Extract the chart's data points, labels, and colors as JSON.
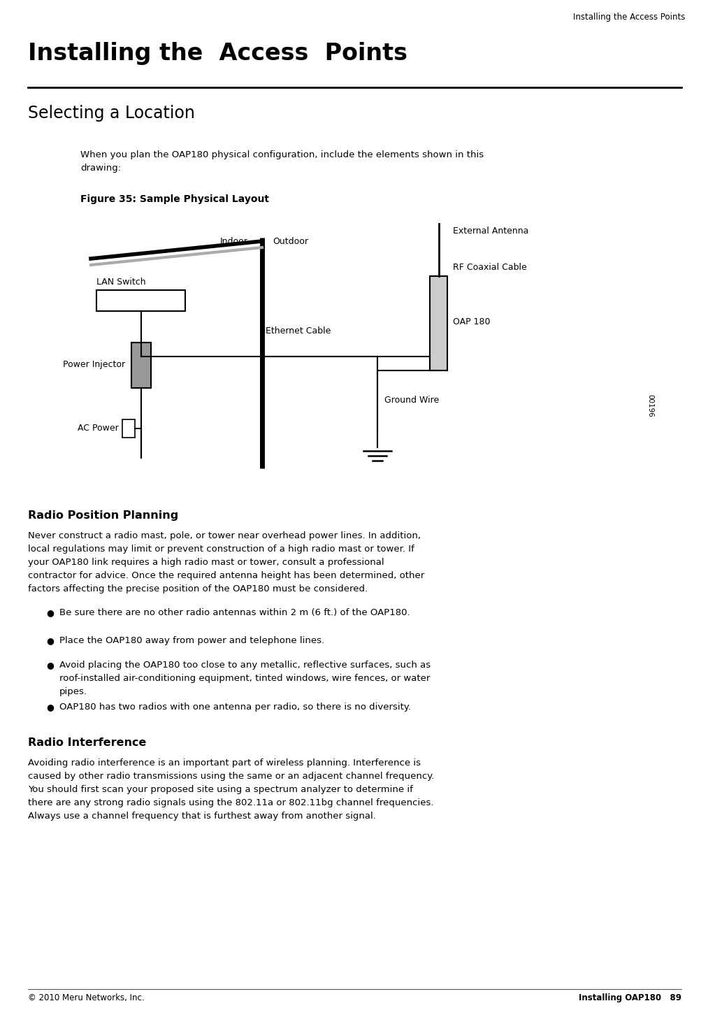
{
  "page_header": "Installing the Access Points",
  "chapter_title": "Installing the  Access  Points",
  "section1_title": "Selecting a Location",
  "section1_intro": "When you plan the OAP180 physical configuration, include the elements shown in this\ndrawing:",
  "figure_caption": "Figure 35: Sample Physical Layout",
  "section2_title": "Radio Position Planning",
  "section2_body": "Never construct a radio mast, pole, or tower near overhead power lines. In addition,\nlocal regulations may limit or prevent construction of a high radio mast or tower. If\nyour OAP180 link requires a high radio mast or tower, consult a professional\ncontractor for advice. Once the required antenna height has been determined, other\nfactors affecting the precise position of the OAP180 must be considered.",
  "bullet1": "Be sure there are no other radio antennas within 2 m (6 ft.) of the OAP180.",
  "bullet2": "Place the OAP180 away from power and telephone lines.",
  "bullet3": "Avoid placing the OAP180 too close to any metallic, reflective surfaces, such as\nroof-installed air-conditioning equipment, tinted windows, wire fences, or water\npipes.",
  "bullet4": "OAP180 has two radios with one antenna per radio, so there is no diversity.",
  "section3_title": "Radio Interference",
  "section3_body": "Avoiding radio interference is an important part of wireless planning. Interference is\ncaused by other radio transmissions using the same or an adjacent channel frequency.\nYou should first scan your proposed site using a spectrum analyzer to determine if\nthere are any strong radio signals using the 802.11a or 802.11bg channel frequencies.\nAlways use a channel frequency that is furthest away from another signal.",
  "footer_left": "© 2010 Meru Networks, Inc.",
  "footer_right": "Installing OAP180   89",
  "bg_color": "#ffffff",
  "text_color": "#000000"
}
